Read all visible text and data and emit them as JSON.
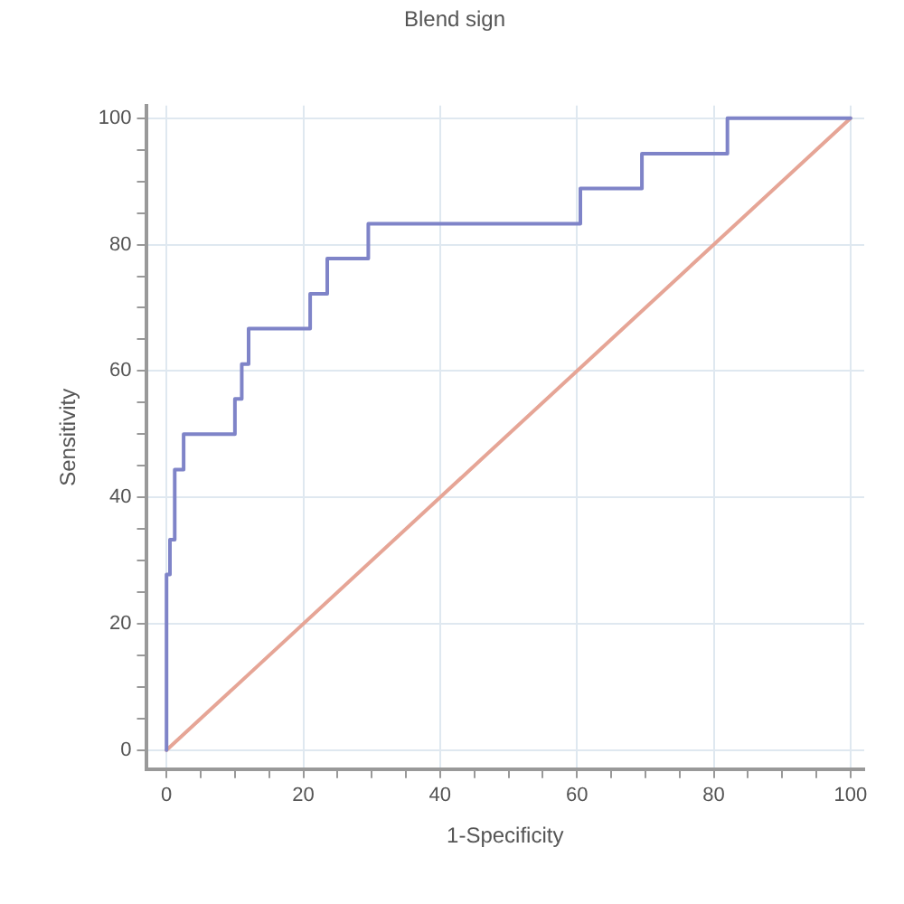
{
  "chart_data": {
    "type": "line",
    "title": "Blend sign",
    "xlabel": "1-Specificity",
    "ylabel": "Sensitivity",
    "series": [
      {
        "color": "#7f84c8",
        "x": [
          0,
          0,
          0.5,
          0.5,
          1.2,
          1.2,
          2.5,
          2.5,
          10,
          10,
          11,
          11,
          12,
          12,
          21,
          21,
          23.5,
          23.5,
          29.5,
          29.5,
          60.5,
          60.5,
          69.5,
          69.5,
          82,
          82,
          100
        ],
        "values": [
          0,
          27.8,
          27.8,
          33.3,
          33.3,
          44.4,
          44.4,
          50,
          50,
          55.6,
          55.6,
          61.1,
          61.1,
          66.7,
          66.7,
          72.2,
          72.2,
          77.8,
          77.8,
          83.3,
          83.3,
          88.9,
          88.9,
          94.4,
          94.4,
          100,
          100
        ]
      },
      {
        "color": "#e6a596",
        "x": [
          0,
          100
        ],
        "values": [
          0,
          100
        ]
      }
    ],
    "xlim": [
      -3,
      102
    ],
    "ylim": [
      -3,
      102
    ],
    "xticks": [
      0,
      {
        "value": 5,
        "label": null
      },
      {
        "value": 10,
        "label": null
      },
      {
        "value": 15,
        "label": null
      },
      20,
      {
        "value": 25,
        "label": null
      },
      {
        "value": 30,
        "label": null
      },
      {
        "value": 35,
        "label": null
      },
      40,
      {
        "value": 45,
        "label": null
      },
      {
        "value": 50,
        "label": null
      },
      {
        "value": 55,
        "label": null
      },
      60,
      {
        "value": 65,
        "label": null
      },
      {
        "value": 70,
        "label": null
      },
      {
        "value": 75,
        "label": null
      },
      80,
      {
        "value": 85,
        "label": null
      },
      {
        "value": 90,
        "label": null
      },
      {
        "value": 95,
        "label": null
      },
      100
    ],
    "yticks": [
      0,
      {
        "value": 5,
        "label": null
      },
      {
        "value": 10,
        "label": null
      },
      {
        "value": 15,
        "label": null
      },
      20,
      {
        "value": 25,
        "label": null
      },
      {
        "value": 30,
        "label": null
      },
      {
        "value": 35,
        "label": null
      },
      40,
      {
        "value": 45,
        "label": null
      },
      {
        "value": 50,
        "label": null
      },
      {
        "value": 55,
        "label": null
      },
      60,
      {
        "value": 65,
        "label": null
      },
      {
        "value": 70,
        "label": null
      },
      {
        "value": 75,
        "label": null
      },
      80,
      {
        "value": 85,
        "label": null
      },
      {
        "value": 90,
        "label": null
      },
      {
        "value": 95,
        "label": null
      },
      100
    ],
    "grid": true,
    "marker": "none",
    "line_style": "solid"
  }
}
